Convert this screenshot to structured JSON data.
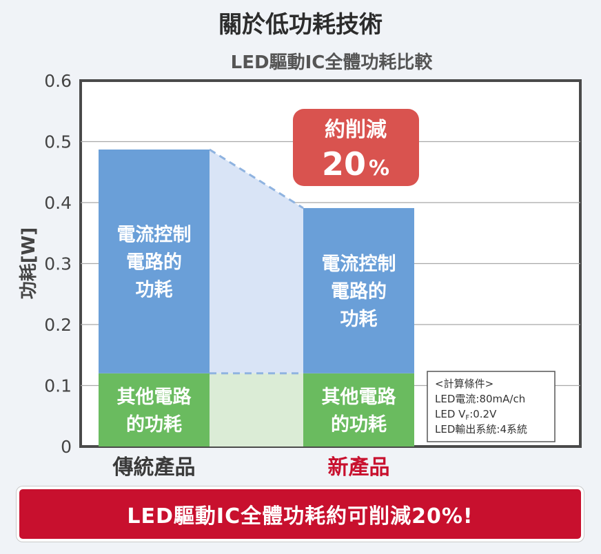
{
  "page": {
    "title": "關於低功耗技術"
  },
  "chart_data": {
    "type": "bar",
    "subtitle": "LED驅動IC全體功耗比較",
    "ylabel": "功耗[W]",
    "ylim": [
      0,
      0.6
    ],
    "yticks": [
      "0",
      "0.1",
      "0.2",
      "0.3",
      "0.4",
      "0.5",
      "0.6"
    ],
    "categories": [
      "傳統產品",
      "新產品"
    ],
    "series": [
      {
        "name": "其他電路的功耗",
        "label_lines": [
          "其他電路",
          "的功耗"
        ],
        "values": [
          0.12,
          0.12
        ],
        "color": "#6abb5f"
      },
      {
        "name": "電流控制電路的功耗",
        "label_lines": [
          "電流控制",
          "電路的",
          "功耗"
        ],
        "values": [
          0.367,
          0.271
        ],
        "color": "#6a9fd8"
      }
    ],
    "category_label_colors": [
      "#3a3a3a",
      "#c8102e"
    ],
    "reduction_badge": {
      "line1": "約削減",
      "line2": "20",
      "unit": "%",
      "color": "#d9534f"
    },
    "conditions": {
      "title": "<計算條件>",
      "lines": [
        "LED電流:80mA/ch",
        "LED V",
        "LED輸出系統:4系統"
      ],
      "vf_sub": "F",
      "vf_value": ":0.2V"
    }
  },
  "banner": {
    "text": "LED驅動IC全體功耗約可削減20%!"
  }
}
